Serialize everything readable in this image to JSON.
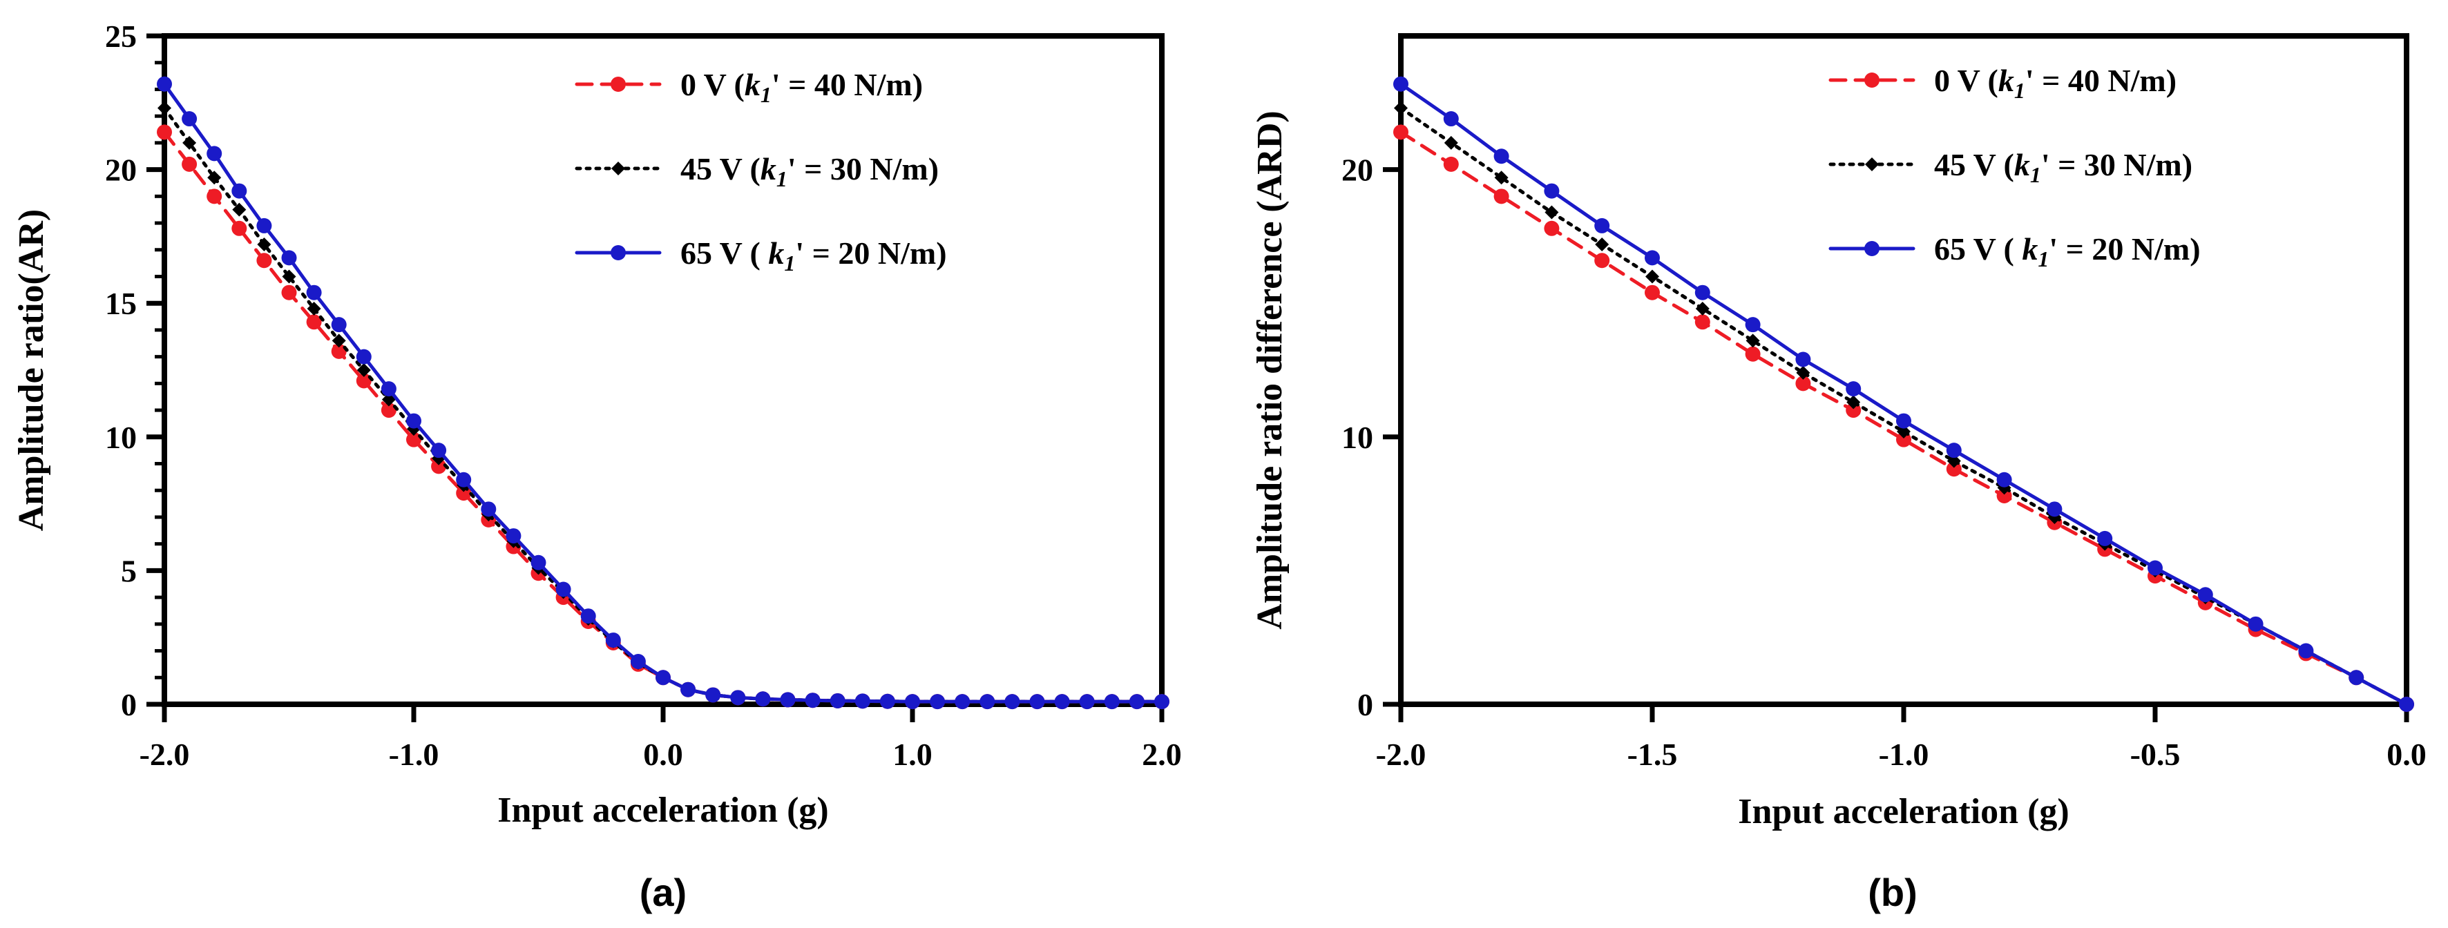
{
  "chart_data": [
    {
      "panel_label": "(a)",
      "type": "line",
      "xlabel": "Input acceleration (g)",
      "ylabel": "Amplitude ratio(AR)",
      "xlim": [
        -2.0,
        2.0
      ],
      "ylim": [
        0,
        25
      ],
      "xticks": [
        -2.0,
        -1.0,
        0.0,
        1.0,
        2.0
      ],
      "xtick_labels": [
        "-2.0",
        "-1.0",
        "0.0",
        "1.0",
        "2.0"
      ],
      "yticks": [
        0,
        5,
        10,
        15,
        20,
        25
      ],
      "ytick_labels": [
        "0",
        "5",
        "10",
        "15",
        "20",
        "25"
      ],
      "legend_position": "top-right",
      "x": [
        -2.0,
        -1.9,
        -1.8,
        -1.7,
        -1.6,
        -1.5,
        -1.4,
        -1.3,
        -1.2,
        -1.1,
        -1.0,
        -0.9,
        -0.8,
        -0.7,
        -0.6,
        -0.5,
        -0.4,
        -0.3,
        -0.2,
        -0.1,
        0.0,
        0.1,
        0.2,
        0.3,
        0.4,
        0.5,
        0.6,
        0.7,
        0.8,
        0.9,
        1.0,
        1.1,
        1.2,
        1.3,
        1.4,
        1.5,
        1.6,
        1.7,
        1.8,
        1.9,
        2.0
      ],
      "series": [
        {
          "name": "0 V",
          "legend_prefix": "0 V (",
          "legend_suffix": "' = 40 N/m)",
          "color": "#ee1c25",
          "dash": "dashed",
          "marker": "circle",
          "values": [
            21.4,
            20.2,
            19.0,
            17.8,
            16.6,
            15.4,
            14.3,
            13.2,
            12.1,
            11.0,
            9.9,
            8.9,
            7.9,
            6.9,
            5.9,
            4.9,
            4.0,
            3.1,
            2.3,
            1.5,
            1.0,
            0.55,
            0.35,
            0.25,
            0.2,
            0.17,
            0.15,
            0.13,
            0.12,
            0.11,
            0.1,
            0.1,
            0.1,
            0.1,
            0.1,
            0.1,
            0.1,
            0.1,
            0.1,
            0.1,
            0.1
          ]
        },
        {
          "name": "45 V",
          "legend_prefix": "45 V (",
          "legend_suffix": "' = 30 N/m)",
          "color": "#000000",
          "dash": "dotted",
          "marker": "diamond",
          "values": [
            22.3,
            21.0,
            19.7,
            18.5,
            17.2,
            16.0,
            14.8,
            13.6,
            12.5,
            11.4,
            10.3,
            9.2,
            8.2,
            7.1,
            6.1,
            5.1,
            4.2,
            3.2,
            2.35,
            1.55,
            1.0,
            0.55,
            0.35,
            0.25,
            0.2,
            0.17,
            0.15,
            0.13,
            0.12,
            0.11,
            0.1,
            0.1,
            0.1,
            0.1,
            0.1,
            0.1,
            0.1,
            0.1,
            0.1,
            0.1,
            0.1
          ]
        },
        {
          "name": "65 V",
          "legend_prefix": "65 V ( ",
          "legend_suffix": "' = 20 N/m)",
          "color": "#1a1ac8",
          "dash": "solid",
          "marker": "circle",
          "values": [
            23.2,
            21.9,
            20.6,
            19.2,
            17.9,
            16.7,
            15.4,
            14.2,
            13.0,
            11.8,
            10.6,
            9.5,
            8.4,
            7.3,
            6.3,
            5.3,
            4.3,
            3.3,
            2.4,
            1.6,
            1.0,
            0.55,
            0.35,
            0.25,
            0.2,
            0.17,
            0.15,
            0.13,
            0.12,
            0.11,
            0.1,
            0.1,
            0.1,
            0.1,
            0.1,
            0.1,
            0.1,
            0.1,
            0.1,
            0.1,
            0.1
          ]
        }
      ]
    },
    {
      "panel_label": "(b)",
      "type": "line",
      "xlabel": "Input acceleration (g)",
      "ylabel": "Amplitude ratio difference (ARD)",
      "xlim": [
        -2.0,
        0.0
      ],
      "ylim": [
        0,
        25
      ],
      "xticks": [
        -2.0,
        -1.5,
        -1.0,
        -0.5,
        0.0
      ],
      "xtick_labels": [
        "-2.0",
        "-1.5",
        "-1.0",
        "-0.5",
        "0.0"
      ],
      "yticks": [
        0,
        10,
        20
      ],
      "ytick_labels": [
        "0",
        "10",
        "20"
      ],
      "legend_position": "top-right",
      "x": [
        -2.0,
        -1.9,
        -1.8,
        -1.7,
        -1.6,
        -1.5,
        -1.4,
        -1.3,
        -1.2,
        -1.1,
        -1.0,
        -0.9,
        -0.8,
        -0.7,
        -0.6,
        -0.5,
        -0.4,
        -0.3,
        -0.2,
        -0.1,
        0.0
      ],
      "series": [
        {
          "name": "0 V",
          "legend_prefix": "0 V (",
          "legend_suffix": "' = 40 N/m)",
          "color": "#ee1c25",
          "dash": "dashed",
          "marker": "circle",
          "values": [
            21.4,
            20.2,
            19.0,
            17.8,
            16.6,
            15.4,
            14.3,
            13.1,
            12.0,
            11.0,
            9.9,
            8.8,
            7.8,
            6.8,
            5.8,
            4.8,
            3.8,
            2.8,
            1.9,
            1.0,
            0.0
          ]
        },
        {
          "name": "45 V",
          "legend_prefix": "45 V (",
          "legend_suffix": "' = 30 N/m)",
          "color": "#000000",
          "dash": "dotted",
          "marker": "diamond",
          "values": [
            22.3,
            21.0,
            19.7,
            18.4,
            17.2,
            16.0,
            14.8,
            13.6,
            12.4,
            11.3,
            10.2,
            9.1,
            8.1,
            7.0,
            6.0,
            5.0,
            4.0,
            3.0,
            2.0,
            1.0,
            0.0
          ]
        },
        {
          "name": "65 V",
          "legend_prefix": "65 V ( ",
          "legend_suffix": "' = 20 N/m)",
          "color": "#1a1ac8",
          "dash": "solid",
          "marker": "circle",
          "values": [
            23.2,
            21.9,
            20.5,
            19.2,
            17.9,
            16.7,
            15.4,
            14.2,
            12.9,
            11.8,
            10.6,
            9.5,
            8.4,
            7.3,
            6.2,
            5.1,
            4.1,
            3.0,
            2.0,
            1.0,
            0.0
          ]
        }
      ]
    }
  ]
}
